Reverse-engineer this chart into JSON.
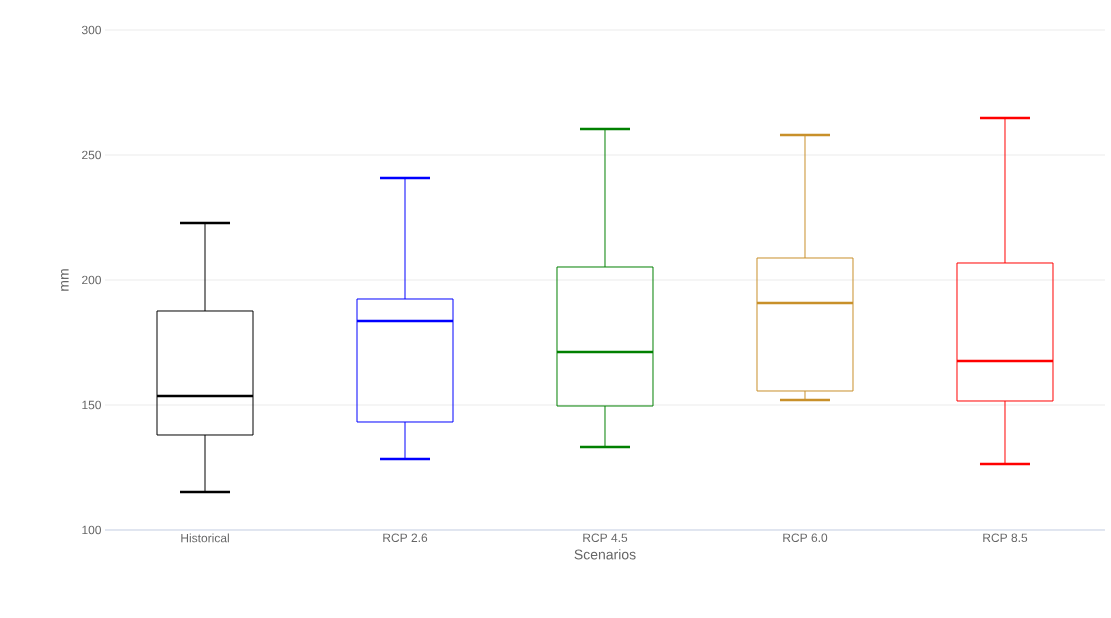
{
  "chart_data": {
    "type": "box",
    "xlabel": "Scenarios",
    "ylabel": "mm",
    "categories": [
      "Historical",
      "RCP 2.6",
      "RCP 4.5",
      "RCP 6.0",
      "RCP 8.5"
    ],
    "boxes": [
      {
        "low": 115.2,
        "q1": 138,
        "median": 153.6,
        "q3": 187.6,
        "high": 222.8
      },
      {
        "low": 128.4,
        "q1": 143.2,
        "median": 183.6,
        "q3": 192.4,
        "high": 240.8
      },
      {
        "low": 133.2,
        "q1": 149.6,
        "median": 171.2,
        "q3": 205.2,
        "high": 260.4
      },
      {
        "low": 152,
        "q1": 155.6,
        "median": 190.8,
        "q3": 208.8,
        "high": 258
      },
      {
        "low": 126.4,
        "q1": 151.6,
        "median": 167.6,
        "q3": 206.8,
        "high": 264.8
      }
    ],
    "colors": [
      "#000000",
      "#0000ff",
      "#008000",
      "#c8902a",
      "#ff0000"
    ],
    "ylim": [
      100,
      300
    ],
    "yticks": [
      100,
      150,
      200,
      250,
      300
    ],
    "grid": "y"
  }
}
